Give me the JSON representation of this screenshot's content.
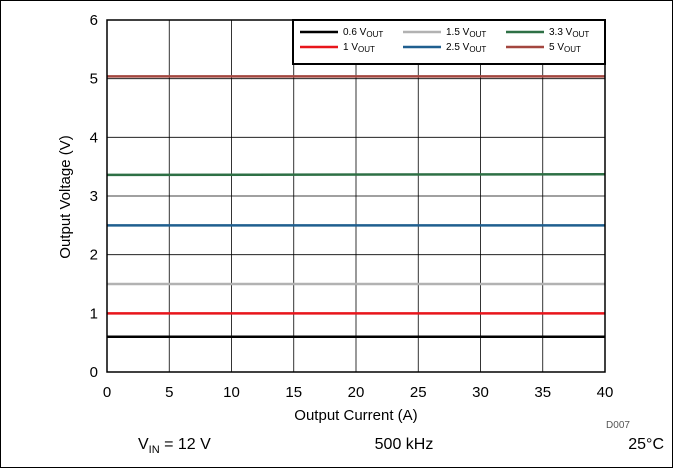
{
  "chart_data": {
    "type": "line",
    "xlabel": "Output Current (A)",
    "ylabel": "Output Voltage (V)",
    "xlim": [
      0,
      40
    ],
    "ylim": [
      0,
      6
    ],
    "xticks": [
      "0",
      "5",
      "10",
      "15",
      "20",
      "25",
      "30",
      "35",
      "40"
    ],
    "yticks": [
      "0",
      "1",
      "2",
      "3",
      "4",
      "5",
      "6"
    ],
    "grid": true,
    "legend_position": "top-right",
    "x": [
      0,
      40
    ],
    "series": [
      {
        "name": "0.6 V",
        "name_sub": "OUT",
        "color": "#000000",
        "values": [
          0.6,
          0.6
        ]
      },
      {
        "name": "1 V",
        "name_sub": "OUT",
        "color": "#e8151b",
        "values": [
          1.0,
          1.0
        ]
      },
      {
        "name": "1.5 V",
        "name_sub": "OUT",
        "color": "#b2b2b2",
        "values": [
          1.5,
          1.5
        ]
      },
      {
        "name": "2.5 V",
        "name_sub": "OUT",
        "color": "#1f5f8f",
        "values": [
          2.5,
          2.5
        ]
      },
      {
        "name": "3.3 V",
        "name_sub": "OUT",
        "color": "#2e7045",
        "values": [
          3.36,
          3.37
        ]
      },
      {
        "name": "5 V",
        "name_sub": "OUT",
        "color": "#a3463f",
        "values": [
          5.04,
          5.04
        ]
      }
    ]
  },
  "footer": {
    "vin_label": "V",
    "vin_sub": "IN",
    "vin_value": " = 12 V",
    "frequency": "500 kHz",
    "temperature": "25°C"
  },
  "figure_id": "D007"
}
